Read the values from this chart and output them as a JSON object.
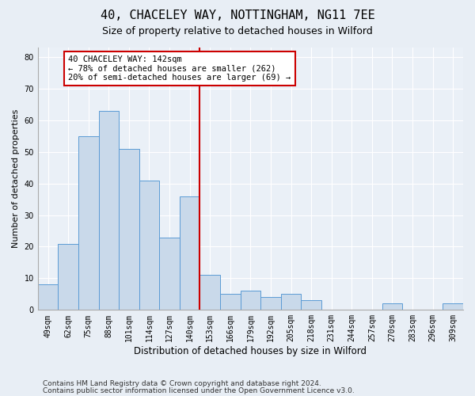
{
  "title1": "40, CHACELEY WAY, NOTTINGHAM, NG11 7EE",
  "title2": "Size of property relative to detached houses in Wilford",
  "xlabel": "Distribution of detached houses by size in Wilford",
  "ylabel": "Number of detached properties",
  "categories": [
    "49sqm",
    "62sqm",
    "75sqm",
    "88sqm",
    "101sqm",
    "114sqm",
    "127sqm",
    "140sqm",
    "153sqm",
    "166sqm",
    "179sqm",
    "192sqm",
    "205sqm",
    "218sqm",
    "231sqm",
    "244sqm",
    "257sqm",
    "270sqm",
    "283sqm",
    "296sqm",
    "309sqm"
  ],
  "values": [
    8,
    21,
    55,
    63,
    51,
    41,
    23,
    36,
    11,
    5,
    6,
    4,
    5,
    3,
    0,
    0,
    0,
    2,
    0,
    0,
    2
  ],
  "bar_color": "#c9d9ea",
  "bar_edge_color": "#5b9bd5",
  "ref_line_x": 7.5,
  "ref_line_color": "#cc0000",
  "annotation_text": "40 CHACELEY WAY: 142sqm\n← 78% of detached houses are smaller (262)\n20% of semi-detached houses are larger (69) →",
  "annotation_box_color": "#ffffff",
  "annotation_box_edge": "#cc0000",
  "ylim": [
    0,
    83
  ],
  "yticks": [
    0,
    10,
    20,
    30,
    40,
    50,
    60,
    70,
    80
  ],
  "footer1": "Contains HM Land Registry data © Crown copyright and database right 2024.",
  "footer2": "Contains public sector information licensed under the Open Government Licence v3.0.",
  "bg_color": "#e8eef5",
  "plot_bg_color": "#eaf0f7",
  "title1_fontsize": 11,
  "title2_fontsize": 9,
  "xlabel_fontsize": 8.5,
  "ylabel_fontsize": 8,
  "tick_fontsize": 7,
  "footer_fontsize": 6.5,
  "annotation_fontsize": 7.5
}
